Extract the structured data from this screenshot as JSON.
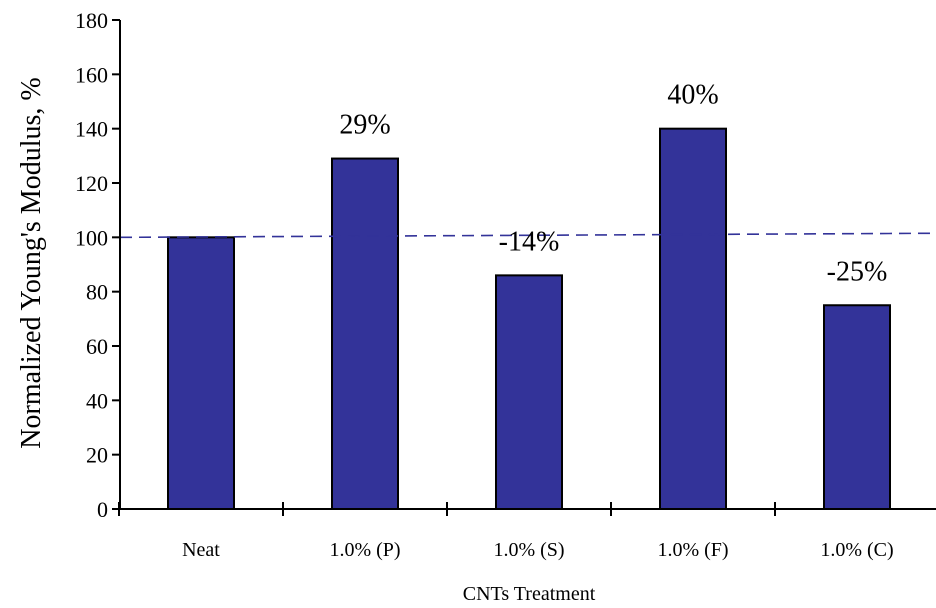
{
  "chart_data": {
    "type": "bar",
    "title": "",
    "xlabel": "CNTs Treatment",
    "ylabel": "Normalized Young's Modulus,  %",
    "categories": [
      "Neat",
      "1.0% (P)",
      "1.0% (S)",
      "1.0% (F)",
      "1.0% (C)"
    ],
    "values": [
      100,
      129,
      86,
      140,
      75
    ],
    "annotations": [
      "",
      "29%",
      "-14%",
      "40%",
      "-25%"
    ],
    "ylim": [
      0,
      180
    ],
    "yticks": [
      0,
      20,
      40,
      60,
      80,
      100,
      120,
      140,
      160,
      180
    ],
    "ytick_labels": [
      "0",
      "20",
      "40",
      "60",
      "80",
      "100",
      "120",
      "140",
      "160",
      "180"
    ],
    "reference_line": {
      "y_start": 100,
      "y_end": 101.5,
      "style": "dashed"
    },
    "grid": false,
    "legend": "none",
    "bar_color": "#333399",
    "reference_line_color": "#333399"
  }
}
